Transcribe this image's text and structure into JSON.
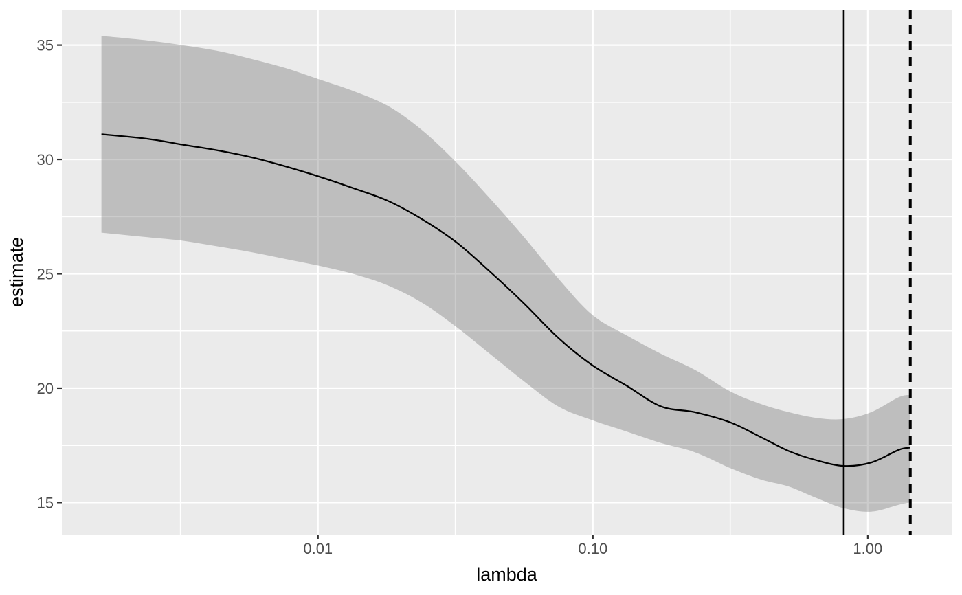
{
  "chart_data": {
    "type": "line",
    "title": "",
    "xlabel": "lambda",
    "ylabel": "estimate",
    "x_scale": "log10",
    "x_domain": [
      0.00117,
      2.02
    ],
    "y_domain": [
      13.6,
      36.55
    ],
    "grid": true,
    "legend": "none",
    "x_major_ticks": [
      {
        "value": 0.01,
        "label": "0.01"
      },
      {
        "value": 0.1,
        "label": "0.10"
      },
      {
        "value": 1.0,
        "label": "1.00"
      }
    ],
    "x_minor_ticks": [
      0.00316,
      0.0316,
      0.316
    ],
    "y_major_ticks": [
      {
        "value": 15,
        "label": "15"
      },
      {
        "value": 20,
        "label": "20"
      },
      {
        "value": 25,
        "label": "25"
      },
      {
        "value": 30,
        "label": "30"
      },
      {
        "value": 35,
        "label": "35"
      }
    ],
    "y_minor_ticks": [
      17.5,
      22.5,
      27.5,
      32.5
    ],
    "x": [
      0.00163,
      0.0024,
      0.0032,
      0.0043,
      0.0057,
      0.0076,
      0.0101,
      0.0134,
      0.0179,
      0.0238,
      0.0317,
      0.0422,
      0.0562,
      0.0748,
      0.0996,
      0.133,
      0.177,
      0.235,
      0.317,
      0.41,
      0.516,
      0.65,
      0.818,
      1.03,
      1.295,
      1.428
    ],
    "series": [
      {
        "name": "estimate",
        "values": [
          31.1,
          30.9,
          30.65,
          30.4,
          30.1,
          29.7,
          29.25,
          28.75,
          28.2,
          27.4,
          26.4,
          25.1,
          23.7,
          22.2,
          21.0,
          20.1,
          19.2,
          18.95,
          18.5,
          17.85,
          17.25,
          16.85,
          16.6,
          16.75,
          17.3,
          17.4
        ]
      }
    ],
    "ribbon": {
      "name": "confidence-band",
      "lower": [
        26.8,
        26.6,
        26.45,
        26.2,
        25.95,
        25.65,
        25.35,
        25.0,
        24.5,
        23.75,
        22.7,
        21.5,
        20.3,
        19.2,
        18.6,
        18.1,
        17.6,
        17.2,
        16.5,
        16.0,
        15.7,
        15.2,
        14.75,
        14.6,
        14.9,
        15.0
      ],
      "upper": [
        35.4,
        35.2,
        35.0,
        34.75,
        34.4,
        34.0,
        33.5,
        33.0,
        32.35,
        31.3,
        29.9,
        28.3,
        26.6,
        24.8,
        23.2,
        22.3,
        21.5,
        20.8,
        19.85,
        19.3,
        18.95,
        18.7,
        18.65,
        18.95,
        19.6,
        19.7
      ]
    },
    "vlines": [
      {
        "x": 0.818,
        "style": "solid"
      },
      {
        "x": 1.428,
        "style": "dashed"
      }
    ],
    "colors": {
      "panel_background": "#ebebeb",
      "gridline": "#ffffff",
      "ribbon_fill_rgba": "rgba(85,85,85,0.30)",
      "line": "#000000",
      "vline": "#000000",
      "tick_mark": "#333333",
      "tick_text": "#4d4d4d",
      "axis_title": "#000000"
    }
  }
}
